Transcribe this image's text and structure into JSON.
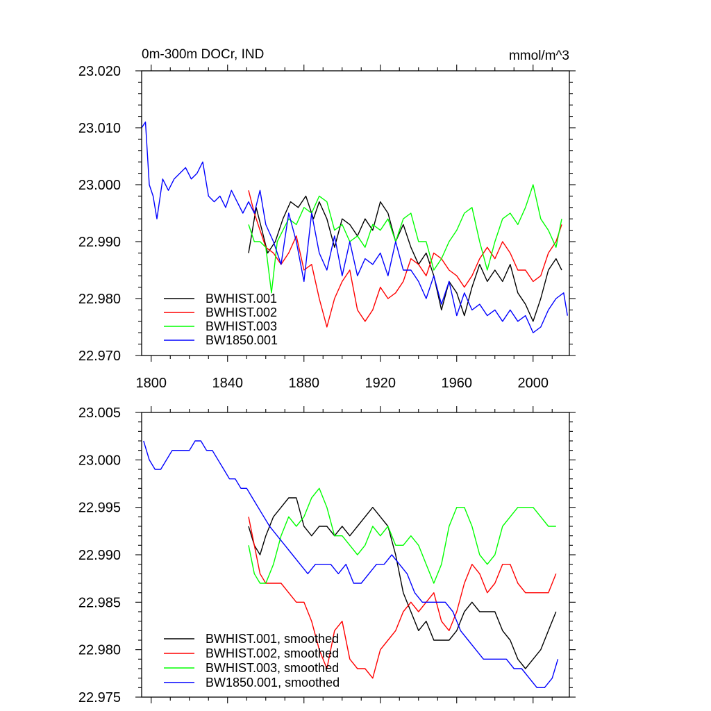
{
  "chart_data": [
    {
      "type": "line",
      "title": "0m-300m DOCr, IND",
      "units": "mmol/m^3",
      "xlim": [
        1795,
        2019
      ],
      "ylim": [
        22.97,
        23.02
      ],
      "x_ticks": [
        1800,
        1840,
        1880,
        1920,
        1960,
        2000
      ],
      "x_tick_labels": [
        "1800",
        "1840",
        "1880",
        "1920",
        "1960",
        "2000"
      ],
      "y_ticks": [
        22.97,
        22.98,
        22.99,
        23.0,
        23.01,
        23.02
      ],
      "y_tick_labels": [
        "22.970",
        "22.980",
        "22.990",
        "23.000",
        "23.010",
        "23.020"
      ],
      "series": [
        {
          "name": "BWHIST.001",
          "color": "#000000",
          "x": [
            1851,
            1855,
            1858,
            1861,
            1865,
            1869,
            1873,
            1877,
            1881,
            1885,
            1888,
            1892,
            1896,
            1900,
            1904,
            1908,
            1912,
            1916,
            1920,
            1924,
            1928,
            1932,
            1936,
            1940,
            1944,
            1948,
            1952,
            1956,
            1960,
            1964,
            1968,
            1972,
            1976,
            1980,
            1984,
            1988,
            1992,
            1996,
            2000,
            2004,
            2008,
            2012,
            2015
          ],
          "y": [
            22.988,
            22.996,
            22.992,
            22.988,
            22.99,
            22.994,
            22.997,
            22.996,
            22.998,
            22.994,
            22.997,
            22.994,
            22.989,
            22.994,
            22.993,
            22.991,
            22.994,
            22.992,
            22.997,
            22.995,
            22.99,
            22.993,
            22.989,
            22.986,
            22.988,
            22.984,
            22.978,
            22.983,
            22.981,
            22.977,
            22.982,
            22.986,
            22.983,
            22.985,
            22.983,
            22.986,
            22.981,
            22.979,
            22.976,
            22.98,
            22.985,
            22.987,
            22.985
          ]
        },
        {
          "name": "BWHIST.002",
          "color": "#ff0000",
          "x": [
            1851,
            1854,
            1857,
            1860,
            1864,
            1868,
            1872,
            1876,
            1880,
            1884,
            1888,
            1892,
            1896,
            1900,
            1904,
            1908,
            1912,
            1916,
            1920,
            1924,
            1928,
            1932,
            1936,
            1940,
            1944,
            1948,
            1952,
            1956,
            1960,
            1964,
            1968,
            1972,
            1976,
            1980,
            1984,
            1988,
            1992,
            1996,
            2000,
            2004,
            2008,
            2012,
            2015
          ],
          "y": [
            22.999,
            22.995,
            22.992,
            22.989,
            22.988,
            22.986,
            22.988,
            22.991,
            22.985,
            22.986,
            22.98,
            22.975,
            22.98,
            22.983,
            22.985,
            22.978,
            22.976,
            22.978,
            22.982,
            22.98,
            22.981,
            22.983,
            22.987,
            22.986,
            22.984,
            22.988,
            22.987,
            22.985,
            22.984,
            22.982,
            22.984,
            22.987,
            22.989,
            22.987,
            22.99,
            22.988,
            22.985,
            22.985,
            22.983,
            22.984,
            22.988,
            22.99,
            22.993
          ]
        },
        {
          "name": "BWHIST.003",
          "color": "#00ff00",
          "x": [
            1851,
            1854,
            1857,
            1860,
            1863,
            1866,
            1869,
            1872,
            1876,
            1880,
            1884,
            1888,
            1892,
            1896,
            1900,
            1904,
            1908,
            1912,
            1916,
            1920,
            1924,
            1928,
            1932,
            1936,
            1940,
            1944,
            1948,
            1952,
            1956,
            1960,
            1964,
            1968,
            1972,
            1976,
            1980,
            1984,
            1988,
            1992,
            1996,
            2000,
            2004,
            2008,
            2012,
            2015
          ],
          "y": [
            22.993,
            22.99,
            22.99,
            22.989,
            22.981,
            22.99,
            22.992,
            22.994,
            22.993,
            22.996,
            22.995,
            22.998,
            22.997,
            22.992,
            22.993,
            22.99,
            22.991,
            22.989,
            22.993,
            22.992,
            22.994,
            22.99,
            22.994,
            22.995,
            22.99,
            22.99,
            22.985,
            22.987,
            22.99,
            22.992,
            22.995,
            22.996,
            22.99,
            22.985,
            22.99,
            22.994,
            22.995,
            22.993,
            22.996,
            23.0,
            22.994,
            22.992,
            22.989,
            22.994
          ]
        },
        {
          "name": "BW1850.001",
          "color": "#0000ff",
          "x": [
            1795,
            1797,
            1799,
            1801,
            1803,
            1806,
            1809,
            1812,
            1815,
            1818,
            1821,
            1824,
            1827,
            1830,
            1833,
            1836,
            1839,
            1842,
            1845,
            1848,
            1851,
            1854,
            1857,
            1860,
            1864,
            1868,
            1872,
            1876,
            1880,
            1884,
            1888,
            1892,
            1896,
            1900,
            1904,
            1908,
            1912,
            1916,
            1920,
            1924,
            1928,
            1932,
            1936,
            1940,
            1944,
            1948,
            1952,
            1956,
            1960,
            1964,
            1968,
            1972,
            1976,
            1980,
            1984,
            1988,
            1992,
            1996,
            2000,
            2004,
            2008,
            2012,
            2016,
            2018
          ],
          "y": [
            23.01,
            23.011,
            23.0,
            22.998,
            22.994,
            23.001,
            22.999,
            23.001,
            23.002,
            23.003,
            23.001,
            23.002,
            23.004,
            22.998,
            22.997,
            22.998,
            22.996,
            22.999,
            22.997,
            22.995,
            22.997,
            22.995,
            22.999,
            22.993,
            22.99,
            22.986,
            22.995,
            22.99,
            22.983,
            22.995,
            22.988,
            22.985,
            22.991,
            22.984,
            22.99,
            22.984,
            22.987,
            22.986,
            22.988,
            22.984,
            22.99,
            22.985,
            22.985,
            22.983,
            22.98,
            22.984,
            22.979,
            22.983,
            22.977,
            22.981,
            22.978,
            22.979,
            22.977,
            22.978,
            22.976,
            22.978,
            22.976,
            22.977,
            22.974,
            22.975,
            22.978,
            22.98,
            22.981,
            22.977
          ]
        }
      ]
    },
    {
      "type": "line",
      "title": "",
      "xlim": [
        1795,
        2019
      ],
      "ylim": [
        22.975,
        23.005
      ],
      "x_ticks": [
        1800,
        1840,
        1880,
        1920,
        1960,
        2000
      ],
      "x_tick_labels": [],
      "y_ticks": [
        22.975,
        22.98,
        22.985,
        22.99,
        22.995,
        23.0,
        23.005
      ],
      "y_tick_labels": [
        "22.975",
        "22.980",
        "22.985",
        "22.990",
        "22.995",
        "23.000",
        "23.005"
      ],
      "series": [
        {
          "name": "BWHIST.001, smoothed",
          "color": "#000000",
          "x": [
            1851,
            1854,
            1857,
            1860,
            1864,
            1868,
            1872,
            1876,
            1880,
            1884,
            1888,
            1892,
            1896,
            1900,
            1904,
            1908,
            1912,
            1916,
            1920,
            1924,
            1928,
            1932,
            1936,
            1940,
            1944,
            1948,
            1952,
            1956,
            1960,
            1964,
            1968,
            1972,
            1976,
            1980,
            1984,
            1988,
            1992,
            1996,
            2000,
            2004,
            2008,
            2012
          ],
          "y": [
            22.993,
            22.991,
            22.99,
            22.992,
            22.994,
            22.995,
            22.996,
            22.996,
            22.993,
            22.992,
            22.993,
            22.993,
            22.992,
            22.993,
            22.992,
            22.993,
            22.994,
            22.995,
            22.994,
            22.993,
            22.99,
            22.986,
            22.984,
            22.982,
            22.983,
            22.981,
            22.981,
            22.981,
            22.982,
            22.984,
            22.985,
            22.984,
            22.984,
            22.984,
            22.982,
            22.981,
            22.979,
            22.978,
            22.979,
            22.98,
            22.982,
            22.984
          ]
        },
        {
          "name": "BWHIST.002, smoothed",
          "color": "#ff0000",
          "x": [
            1851,
            1854,
            1857,
            1860,
            1864,
            1868,
            1872,
            1876,
            1880,
            1884,
            1888,
            1892,
            1896,
            1900,
            1904,
            1908,
            1912,
            1916,
            1920,
            1924,
            1928,
            1932,
            1936,
            1940,
            1944,
            1948,
            1952,
            1956,
            1960,
            1964,
            1968,
            1972,
            1976,
            1980,
            1984,
            1988,
            1992,
            1996,
            2000,
            2004,
            2008,
            2012
          ],
          "y": [
            22.994,
            22.991,
            22.988,
            22.987,
            22.987,
            22.987,
            22.986,
            22.985,
            22.985,
            22.983,
            22.98,
            22.978,
            22.982,
            22.983,
            22.979,
            22.978,
            22.978,
            22.977,
            22.98,
            22.981,
            22.982,
            22.984,
            22.985,
            22.984,
            22.985,
            22.986,
            22.983,
            22.982,
            22.984,
            22.987,
            22.989,
            22.988,
            22.986,
            22.987,
            22.989,
            22.989,
            22.987,
            22.986,
            22.986,
            22.986,
            22.986,
            22.988
          ]
        },
        {
          "name": "BWHIST.003, smoothed",
          "color": "#00ff00",
          "x": [
            1851,
            1854,
            1857,
            1860,
            1864,
            1868,
            1872,
            1876,
            1880,
            1884,
            1888,
            1892,
            1896,
            1900,
            1904,
            1908,
            1912,
            1916,
            1920,
            1924,
            1928,
            1932,
            1936,
            1940,
            1944,
            1948,
            1952,
            1956,
            1960,
            1964,
            1968,
            1972,
            1976,
            1980,
            1984,
            1988,
            1992,
            1996,
            2000,
            2004,
            2008,
            2012
          ],
          "y": [
            22.991,
            22.988,
            22.987,
            22.987,
            22.989,
            22.992,
            22.994,
            22.993,
            22.994,
            22.996,
            22.997,
            22.995,
            22.992,
            22.992,
            22.991,
            22.99,
            22.991,
            22.993,
            22.992,
            22.993,
            22.991,
            22.991,
            22.992,
            22.991,
            22.989,
            22.987,
            22.989,
            22.993,
            22.995,
            22.995,
            22.993,
            22.99,
            22.989,
            22.99,
            22.993,
            22.994,
            22.995,
            22.995,
            22.995,
            22.994,
            22.993,
            22.993
          ]
        },
        {
          "name": "BW1850.001, smoothed",
          "color": "#0000ff",
          "x": [
            1796,
            1799,
            1802,
            1805,
            1808,
            1811,
            1814,
            1817,
            1820,
            1823,
            1826,
            1829,
            1832,
            1835,
            1838,
            1841,
            1844,
            1847,
            1850,
            1853,
            1856,
            1859,
            1862,
            1866,
            1870,
            1874,
            1878,
            1882,
            1886,
            1890,
            1894,
            1898,
            1902,
            1906,
            1910,
            1914,
            1918,
            1922,
            1926,
            1930,
            1934,
            1938,
            1942,
            1946,
            1950,
            1954,
            1958,
            1962,
            1966,
            1970,
            1974,
            1978,
            1982,
            1986,
            1990,
            1994,
            1998,
            2002,
            2006,
            2010,
            2013
          ],
          "y": [
            23.002,
            23.0,
            22.999,
            22.999,
            23.0,
            23.001,
            23.001,
            23.001,
            23.001,
            23.002,
            23.002,
            23.001,
            23.001,
            23.0,
            22.999,
            22.998,
            22.998,
            22.997,
            22.997,
            22.996,
            22.995,
            22.994,
            22.993,
            22.992,
            22.991,
            22.99,
            22.989,
            22.988,
            22.989,
            22.989,
            22.989,
            22.988,
            22.989,
            22.987,
            22.987,
            22.988,
            22.989,
            22.989,
            22.99,
            22.989,
            22.988,
            22.986,
            22.985,
            22.985,
            22.985,
            22.985,
            22.984,
            22.982,
            22.981,
            22.98,
            22.979,
            22.979,
            22.979,
            22.979,
            22.978,
            22.978,
            22.977,
            22.976,
            22.976,
            22.977,
            22.979
          ]
        }
      ]
    }
  ]
}
